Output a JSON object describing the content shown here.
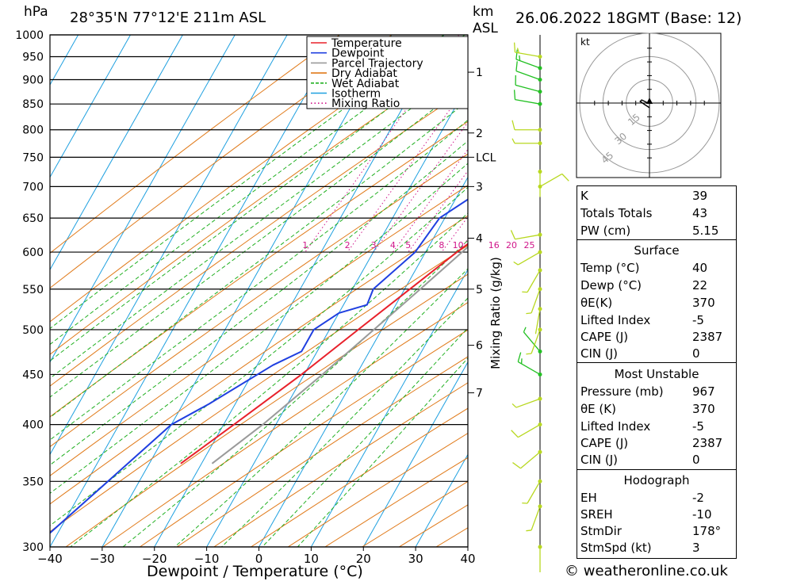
{
  "header": {
    "hpa_label": "hPa",
    "location": "28°35'N  77°12'E  211m  ASL",
    "km_label": "km",
    "asl_label": "ASL",
    "datetime": "26.06.2022  18GMT  (Base: 12)"
  },
  "footer": {
    "copyright": "© weatheronline.co.uk"
  },
  "chart_data": {
    "type": "line",
    "title": "28°35'N  77°12'E  211m  ASL",
    "xlabel": "Dewpoint / Temperature (°C)",
    "ylabel": "hPa",
    "xlim": [
      -40,
      40
    ],
    "ylim": [
      1000,
      300
    ],
    "y_scale": "log",
    "grid": true,
    "legend": {
      "placement": "top-right",
      "entries": [
        {
          "label": "Temperature",
          "color": "#e8202a"
        },
        {
          "label": "Dewpoint",
          "color": "#1f3fe0"
        },
        {
          "label": "Parcel Trajectory",
          "color": "#9a9a9a"
        },
        {
          "label": "Dry Adiabat",
          "color": "#e07a1a"
        },
        {
          "label": "Wet Adiabat",
          "color": "#22b022"
        },
        {
          "label": "Isotherm",
          "color": "#1ea0e0"
        },
        {
          "label": "Mixing Ratio",
          "color": "#d0158a"
        }
      ]
    },
    "x_ticks": [
      -40,
      -30,
      -20,
      -10,
      0,
      10,
      20,
      30,
      40
    ],
    "pressure_levels": [
      300,
      350,
      400,
      450,
      500,
      550,
      600,
      650,
      700,
      750,
      800,
      850,
      900,
      950,
      1000
    ],
    "km_ticks": [
      {
        "km": "1",
        "p": 916
      },
      {
        "km": "2",
        "p": 794
      },
      {
        "km": "LCL",
        "p": 750
      },
      {
        "km": "3",
        "p": 700
      },
      {
        "km": "4",
        "p": 620
      },
      {
        "km": "5",
        "p": 550
      },
      {
        "km": "6",
        "p": 482
      },
      {
        "km": "7",
        "p": 431
      }
    ],
    "km_axis_label": "Mixing Ratio (g/kg)",
    "mixing_ratio_labels": [
      "1",
      "2",
      "3",
      "4",
      "5",
      "8",
      "10",
      "16",
      "20",
      "25"
    ],
    "mixing_ratio_values": [
      1,
      2,
      3,
      4,
      5,
      8,
      10,
      16,
      20,
      25
    ],
    "series": [
      {
        "name": "Temperature",
        "color": "#e8202a",
        "points": [
          [
            1000,
            40.5
          ],
          [
            960,
            37
          ],
          [
            930,
            33
          ],
          [
            900,
            30
          ],
          [
            860,
            26
          ],
          [
            820,
            23
          ],
          [
            780,
            20.5
          ],
          [
            750,
            18
          ],
          [
            720,
            15.5
          ],
          [
            700,
            13.5
          ],
          [
            670,
            12
          ],
          [
            650,
            11
          ],
          [
            600,
            6
          ],
          [
            550,
            1
          ],
          [
            500,
            -4.5
          ],
          [
            450,
            -10.5
          ],
          [
            400,
            -18
          ],
          [
            365,
            -24
          ]
        ]
      },
      {
        "name": "Dewpoint",
        "color": "#1f3fe0",
        "points": [
          [
            960,
            22
          ],
          [
            950,
            21
          ],
          [
            900,
            20.5
          ],
          [
            850,
            19
          ],
          [
            800,
            14
          ],
          [
            750,
            6
          ],
          [
            720,
            8
          ],
          [
            700,
            8.5
          ],
          [
            680,
            2.5
          ],
          [
            650,
            -1
          ],
          [
            600,
            -2
          ],
          [
            550,
            -6
          ],
          [
            530,
            -5.5
          ],
          [
            520,
            -10
          ],
          [
            500,
            -13
          ],
          [
            475,
            -13
          ],
          [
            460,
            -17
          ],
          [
            420,
            -25
          ],
          [
            400,
            -30
          ],
          [
            350,
            -36
          ],
          [
            300,
            -43
          ]
        ]
      },
      {
        "name": "Parcel Trajectory",
        "color": "#9a9a9a",
        "points": [
          [
            920,
            26
          ],
          [
            850,
            21
          ],
          [
            800,
            18.5
          ],
          [
            750,
            16.5
          ],
          [
            700,
            14
          ],
          [
            650,
            10.5
          ],
          [
            600,
            7
          ],
          [
            550,
            3
          ],
          [
            500,
            -1.5
          ],
          [
            450,
            -6.5
          ],
          [
            400,
            -12.5
          ],
          [
            365,
            -18
          ]
        ]
      }
    ]
  },
  "hodograph": {
    "unit_label": "kt",
    "rings": [
      {
        "label": "15",
        "radius_kt": 15
      },
      {
        "label": "30",
        "radius_kt": 30
      },
      {
        "label": "45",
        "radius_kt": 45
      }
    ],
    "trace": [
      [
        0,
        -3
      ],
      [
        -3,
        -1
      ],
      [
        -6,
        1
      ],
      [
        -5,
        2
      ],
      [
        -3,
        1
      ],
      [
        -1,
        0
      ],
      [
        0,
        0
      ]
    ]
  },
  "wind_barbs": [
    {
      "p": 300,
      "dir": 180,
      "spd": 3,
      "color": "#b8d820"
    },
    {
      "p": 330,
      "dir": 200,
      "spd": 6,
      "color": "#b8d820"
    },
    {
      "p": 350,
      "dir": 210,
      "spd": 8,
      "color": "#b8d820"
    },
    {
      "p": 375,
      "dir": 230,
      "spd": 12,
      "color": "#b8d820"
    },
    {
      "p": 400,
      "dir": 240,
      "spd": 10,
      "color": "#b8d820"
    },
    {
      "p": 425,
      "dir": 250,
      "spd": 9,
      "color": "#b8d820"
    },
    {
      "p": 450,
      "dir": 300,
      "spd": 16,
      "color": "#22c022"
    },
    {
      "p": 475,
      "dir": 320,
      "spd": 8,
      "color": "#22c022"
    },
    {
      "p": 500,
      "dir": 200,
      "spd": 5,
      "color": "#b8d820"
    },
    {
      "p": 525,
      "dir": 190,
      "spd": 4,
      "color": "#b8d820"
    },
    {
      "p": 550,
      "dir": 200,
      "spd": 6,
      "color": "#b8d820"
    },
    {
      "p": 575,
      "dir": 210,
      "spd": 7,
      "color": "#b8d820"
    },
    {
      "p": 600,
      "dir": 240,
      "spd": 9,
      "color": "#b8d820"
    },
    {
      "p": 625,
      "dir": 260,
      "spd": 12,
      "color": "#b8d820"
    },
    {
      "p": 700,
      "dir": 60,
      "spd": 12,
      "color": "#b8d820"
    },
    {
      "p": 725,
      "dir": 180,
      "spd": 3,
      "color": "#b8d820"
    },
    {
      "p": 775,
      "dir": 270,
      "spd": 9,
      "color": "#b8d820"
    },
    {
      "p": 800,
      "dir": 270,
      "spd": 10,
      "color": "#b8d820"
    },
    {
      "p": 850,
      "dir": 280,
      "spd": 12,
      "color": "#22c022"
    },
    {
      "p": 875,
      "dir": 285,
      "spd": 13,
      "color": "#22c022"
    },
    {
      "p": 900,
      "dir": 290,
      "spd": 14,
      "color": "#22c022"
    },
    {
      "p": 925,
      "dir": 290,
      "spd": 15,
      "color": "#22c022"
    },
    {
      "p": 950,
      "dir": 280,
      "spd": 16,
      "color": "#b8d820"
    }
  ],
  "indices": {
    "top": [
      {
        "label": "K",
        "value": "39"
      },
      {
        "label": "Totals Totals",
        "value": "43"
      },
      {
        "label": "PW (cm)",
        "value": "5.15"
      }
    ],
    "surface": {
      "title": "Surface",
      "rows": [
        {
          "label": "Temp (°C)",
          "value": "40"
        },
        {
          "label": "Dewp (°C)",
          "value": "22"
        },
        {
          "label": "θE(K)",
          "value": "370"
        },
        {
          "label": "Lifted Index",
          "value": "-5"
        },
        {
          "label": "CAPE (J)",
          "value": "2387"
        },
        {
          "label": "CIN (J)",
          "value": "0"
        }
      ]
    },
    "most_unstable": {
      "title": "Most Unstable",
      "rows": [
        {
          "label": "Pressure (mb)",
          "value": "967"
        },
        {
          "label": "θE (K)",
          "value": "370"
        },
        {
          "label": "Lifted Index",
          "value": "-5"
        },
        {
          "label": "CAPE (J)",
          "value": "2387"
        },
        {
          "label": "CIN (J)",
          "value": "0"
        }
      ]
    },
    "hodograph": {
      "title": "Hodograph",
      "rows": [
        {
          "label": "EH",
          "value": "-2"
        },
        {
          "label": "SREH",
          "value": "-10"
        },
        {
          "label": "StmDir",
          "value": "178°"
        },
        {
          "label": "StmSpd (kt)",
          "value": "3"
        }
      ]
    }
  }
}
